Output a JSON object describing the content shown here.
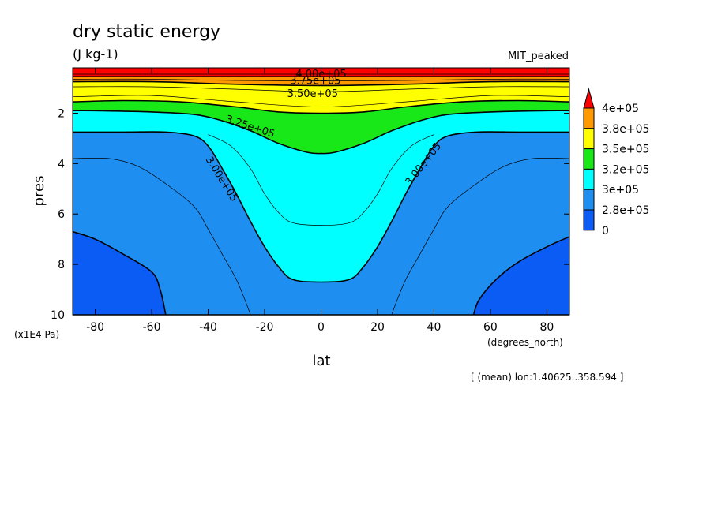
{
  "chart_data": {
    "type": "contour",
    "title": "dry static energy",
    "units": "(J kg-1)",
    "run_name": "MIT_peaked",
    "xlabel": "lat",
    "ylabel": "pres",
    "x_unit": "(degrees_north)",
    "y_unit": "(x1E4 Pa)",
    "footnote": "[ (mean) lon:1.40625..358.594 ]",
    "xlim": [
      -88,
      88
    ],
    "ylim": [
      10,
      0.2
    ],
    "x_ticks": [
      -80,
      -60,
      -40,
      -20,
      0,
      20,
      40,
      60,
      80
    ],
    "x_tick_labels": [
      "-80",
      "-60",
      "-40",
      "-20",
      "0",
      "20",
      "40",
      "60",
      "80"
    ],
    "y_ticks": [
      2,
      4,
      6,
      8,
      10
    ],
    "y_tick_labels": [
      "2",
      "4",
      "6",
      "8",
      "10"
    ],
    "levels": [
      {
        "label": "0",
        "color": "#0b5cf5"
      },
      {
        "label": "2.8e+05",
        "color": "#1e8ff0"
      },
      {
        "label": "3e+05",
        "color": "#00ffff"
      },
      {
        "label": "3.2e+05",
        "color": "#18e818"
      },
      {
        "label": "3.5e+05",
        "color": "#ffff00"
      },
      {
        "label": "3.8e+05",
        "color": "#ff9900"
      },
      {
        "label": "4e+05",
        "color": "#ff0000"
      }
    ],
    "contour_labels": [
      {
        "text": "4.00e+05",
        "lat": 0,
        "pres": 0.42
      },
      {
        "text": "3.75e+05",
        "lat": -2,
        "pres": 0.68
      },
      {
        "text": "3.50e+05",
        "lat": -3,
        "pres": 1.2
      },
      {
        "text": "3.25e+05",
        "lat": -25,
        "pres": 2.5
      },
      {
        "text": "3.00e+05",
        "lat": -35,
        "pres": 4.6
      },
      {
        "text": "3.00e+05",
        "lat": 36,
        "pres": 4.0
      }
    ],
    "bands": [
      {
        "level": 6,
        "boundary": [
          [
            -88,
            0.55
          ],
          [
            -60,
            0.55
          ],
          [
            -30,
            0.55
          ],
          [
            0,
            0.55
          ],
          [
            30,
            0.55
          ],
          [
            60,
            0.55
          ],
          [
            88,
            0.55
          ]
        ]
      },
      {
        "level": 5,
        "boundary": [
          [
            -88,
            0.75
          ],
          [
            -60,
            0.75
          ],
          [
            -30,
            0.85
          ],
          [
            0,
            0.9
          ],
          [
            30,
            0.85
          ],
          [
            60,
            0.75
          ],
          [
            88,
            0.75
          ]
        ]
      },
      {
        "level": 4,
        "boundary": [
          [
            -88,
            1.55
          ],
          [
            -70,
            1.5
          ],
          [
            -50,
            1.55
          ],
          [
            -30,
            1.75
          ],
          [
            -15,
            1.95
          ],
          [
            0,
            2.0
          ],
          [
            15,
            1.95
          ],
          [
            30,
            1.75
          ],
          [
            50,
            1.55
          ],
          [
            70,
            1.5
          ],
          [
            88,
            1.55
          ]
        ]
      },
      {
        "level": 3,
        "boundary": [
          [
            -88,
            1.9
          ],
          [
            -80,
            1.9
          ],
          [
            -60,
            1.95
          ],
          [
            -45,
            2.05
          ],
          [
            -35,
            2.3
          ],
          [
            -25,
            2.7
          ],
          [
            -15,
            3.2
          ],
          [
            -5,
            3.55
          ],
          [
            0,
            3.6
          ],
          [
            5,
            3.55
          ],
          [
            15,
            3.2
          ],
          [
            25,
            2.7
          ],
          [
            35,
            2.3
          ],
          [
            45,
            2.05
          ],
          [
            60,
            1.95
          ],
          [
            80,
            1.9
          ],
          [
            88,
            1.9
          ]
        ]
      },
      {
        "level": 2,
        "boundary": [
          [
            -88,
            2.75
          ],
          [
            -70,
            2.75
          ],
          [
            -55,
            2.75
          ],
          [
            -45,
            2.9
          ],
          [
            -40,
            3.3
          ],
          [
            -35,
            4.2
          ],
          [
            -30,
            5.2
          ],
          [
            -25,
            6.3
          ],
          [
            -20,
            7.3
          ],
          [
            -15,
            8.1
          ],
          [
            -10,
            8.6
          ],
          [
            0,
            8.7
          ],
          [
            10,
            8.6
          ],
          [
            15,
            8.1
          ],
          [
            20,
            7.3
          ],
          [
            25,
            6.3
          ],
          [
            30,
            5.2
          ],
          [
            35,
            4.2
          ],
          [
            40,
            3.3
          ],
          [
            45,
            2.9
          ],
          [
            55,
            2.75
          ],
          [
            70,
            2.75
          ],
          [
            88,
            2.75
          ]
        ]
      },
      {
        "level": 1,
        "boundary": [
          [
            -88,
            10
          ],
          [
            88,
            10
          ]
        ]
      }
    ],
    "patches": [
      {
        "level": 0,
        "boundary": [
          [
            -88,
            6.7
          ],
          [
            -80,
            7.0
          ],
          [
            -70,
            7.6
          ],
          [
            -60,
            8.3
          ],
          [
            -57,
            9.0
          ],
          [
            -55,
            10
          ],
          [
            -88,
            10
          ]
        ]
      },
      {
        "level": 0,
        "boundary": [
          [
            88,
            6.9
          ],
          [
            80,
            7.3
          ],
          [
            70,
            7.9
          ],
          [
            62,
            8.6
          ],
          [
            56,
            9.4
          ],
          [
            54,
            10
          ],
          [
            88,
            10
          ]
        ]
      }
    ],
    "thin_contours": [
      [
        [
          -88,
          3.8
        ],
        [
          -75,
          3.8
        ],
        [
          -65,
          4.1
        ],
        [
          -55,
          4.8
        ],
        [
          -45,
          5.7
        ],
        [
          -40,
          6.6
        ],
        [
          -35,
          7.6
        ],
        [
          -30,
          8.6
        ],
        [
          -27,
          9.4
        ],
        [
          -25,
          10
        ]
      ],
      [
        [
          88,
          3.8
        ],
        [
          75,
          3.8
        ],
        [
          65,
          4.1
        ],
        [
          55,
          4.8
        ],
        [
          45,
          5.7
        ],
        [
          40,
          6.6
        ],
        [
          35,
          7.6
        ],
        [
          30,
          8.6
        ],
        [
          27,
          9.4
        ],
        [
          25,
          10
        ]
      ],
      [
        [
          -40,
          2.85
        ],
        [
          -32,
          3.3
        ],
        [
          -25,
          4.2
        ],
        [
          -20,
          5.2
        ],
        [
          -15,
          5.95
        ],
        [
          -10,
          6.35
        ],
        [
          0,
          6.45
        ],
        [
          10,
          6.35
        ],
        [
          15,
          5.95
        ],
        [
          20,
          5.2
        ],
        [
          25,
          4.2
        ],
        [
          32,
          3.3
        ],
        [
          40,
          2.85
        ]
      ],
      [
        [
          -88,
          1.35
        ],
        [
          -60,
          1.3
        ],
        [
          -30,
          1.55
        ],
        [
          0,
          1.75
        ],
        [
          30,
          1.55
        ],
        [
          60,
          1.3
        ],
        [
          88,
          1.35
        ]
      ],
      [
        [
          -88,
          0.95
        ],
        [
          -60,
          0.95
        ],
        [
          -30,
          1.05
        ],
        [
          0,
          1.15
        ],
        [
          30,
          1.05
        ],
        [
          60,
          0.95
        ],
        [
          88,
          0.95
        ]
      ],
      [
        [
          -88,
          0.65
        ],
        [
          -60,
          0.65
        ],
        [
          -30,
          0.7
        ],
        [
          0,
          0.72
        ],
        [
          30,
          0.7
        ],
        [
          60,
          0.65
        ],
        [
          88,
          0.65
        ]
      ],
      [
        [
          -88,
          0.45
        ],
        [
          88,
          0.45
        ]
      ]
    ]
  }
}
